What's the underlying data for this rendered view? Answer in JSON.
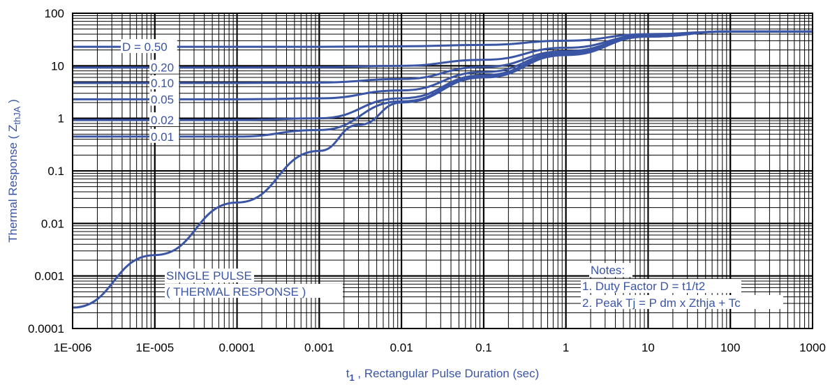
{
  "chart_data": {
    "type": "line",
    "x_scale": "log",
    "y_scale": "log",
    "xlim": [
      1e-06,
      1000
    ],
    "ylim": [
      0.0001,
      100
    ],
    "xlabel_main": "t",
    "xlabel_sub": "1",
    "xlabel_rest": " , Rectangular Pulse Duration (sec)",
    "ylabel_main": "Thermal Response ( Z",
    "ylabel_sub": "thJA",
    "ylabel_rest": " )",
    "x_ticks": [
      "1E-006",
      "1E-005",
      "0.0001",
      "0.001",
      "0.01",
      "0.1",
      "1",
      "10",
      "100",
      "1000"
    ],
    "y_ticks": [
      "0.0001",
      "0.001",
      "0.01",
      "0.1",
      "1",
      "10",
      "100"
    ],
    "grid": true,
    "line_color": "#3b55a5",
    "series": [
      {
        "name": "D = 0.50",
        "label": "D = 0.50",
        "x": [
          1e-06,
          1e-05,
          0.0001,
          0.001,
          0.01,
          0.1,
          1,
          10,
          100,
          1000
        ],
        "y": [
          23,
          23,
          23,
          23,
          23.5,
          25,
          30,
          40,
          45,
          45
        ]
      },
      {
        "name": "0.20",
        "label": "0.20",
        "x": [
          1e-06,
          1e-05,
          0.0001,
          0.001,
          0.01,
          0.1,
          1,
          10,
          100,
          1000
        ],
        "y": [
          9.3,
          9.3,
          9.3,
          9.4,
          10,
          13,
          22,
          38,
          45,
          45
        ]
      },
      {
        "name": "0.10",
        "label": "0.10",
        "x": [
          1e-06,
          1e-05,
          0.0001,
          0.001,
          0.01,
          0.1,
          1,
          10,
          100,
          1000
        ],
        "y": [
          4.7,
          4.7,
          4.7,
          4.8,
          5.6,
          9.5,
          19,
          37,
          45,
          45
        ]
      },
      {
        "name": "0.05",
        "label": "0.05",
        "x": [
          1e-06,
          1e-05,
          0.0001,
          0.001,
          0.01,
          0.1,
          1,
          10,
          100,
          1000
        ],
        "y": [
          2.3,
          2.3,
          2.3,
          2.4,
          3.4,
          7.6,
          18,
          37,
          45,
          45
        ]
      },
      {
        "name": "0.02",
        "label": "0.02",
        "x": [
          1e-06,
          1e-05,
          0.0001,
          0.001,
          0.01,
          0.1,
          1,
          10,
          100,
          1000
        ],
        "y": [
          0.93,
          0.93,
          0.93,
          1.0,
          2.4,
          6.6,
          17,
          36,
          45,
          45
        ]
      },
      {
        "name": "0.01",
        "label": "0.01",
        "x": [
          1e-06,
          1e-05,
          0.0001,
          0.001,
          0.01,
          0.1,
          1,
          10,
          100,
          1000
        ],
        "y": [
          0.45,
          0.45,
          0.45,
          0.6,
          2.1,
          6.3,
          17,
          36,
          45,
          45
        ]
      },
      {
        "name": "SINGLE PULSE",
        "label": "",
        "x": [
          1e-06,
          1e-05,
          0.0001,
          0.001,
          0.003,
          0.01,
          0.1,
          1,
          10,
          100,
          1000
        ],
        "y": [
          0.00025,
          0.0025,
          0.025,
          0.24,
          0.75,
          2.0,
          6.0,
          16,
          36,
          45,
          45
        ]
      }
    ],
    "annotations": {
      "single_pulse_line1": "SINGLE PULSE",
      "single_pulse_line2": "( THERMAL RESPONSE )",
      "notes_title": "Notes:",
      "note1": "1. Duty Factor D = t1/t2",
      "note2": "2. Peak Tj = P dm x Zthja + Tc"
    }
  }
}
